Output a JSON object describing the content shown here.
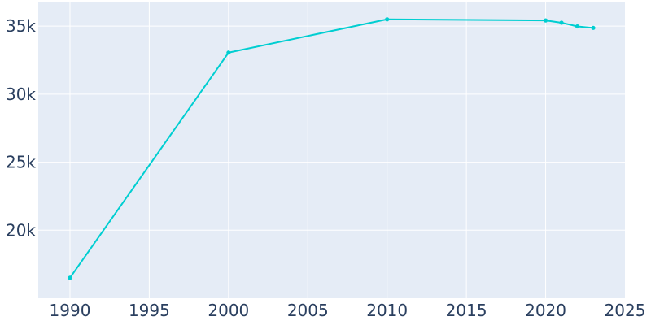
{
  "colors": {
    "plot_background": "#e5ecf6",
    "grid": "#ffffff",
    "line": "#00ced1",
    "tick_text": "#2a3f5f"
  },
  "chart_data": {
    "type": "line",
    "title": "",
    "xlabel": "",
    "ylabel": "",
    "grid": true,
    "legend": "none",
    "xlim": [
      1988,
      2025
    ],
    "ylim": [
      15000,
      36800
    ],
    "x_ticks": [
      1990,
      1995,
      2000,
      2005,
      2010,
      2015,
      2020,
      2025
    ],
    "x_tick_labels": [
      "1990",
      "1995",
      "2000",
      "2005",
      "2010",
      "2015",
      "2020",
      "2025"
    ],
    "y_ticks": [
      20000,
      25000,
      30000,
      35000
    ],
    "y_tick_labels": [
      "20k",
      "25k",
      "30k",
      "35k"
    ],
    "series": [
      {
        "x": [
          1990,
          2000,
          2010,
          2020,
          2021,
          2022,
          2023
        ],
        "y": [
          16500,
          33050,
          35500,
          35420,
          35250,
          34980,
          34870
        ]
      }
    ]
  }
}
